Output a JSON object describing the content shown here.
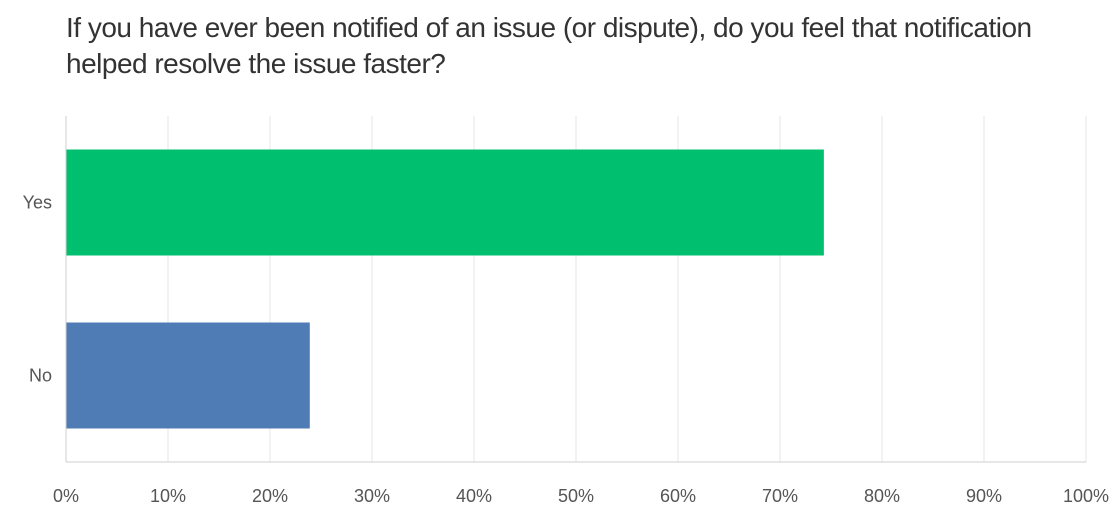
{
  "chart_data": {
    "type": "bar",
    "orientation": "horizontal",
    "title": "If you have ever been notified of an issue (or dispute), do you feel that notification helped resolve the issue faster?",
    "categories": [
      "Yes",
      "No"
    ],
    "values": [
      74.3,
      23.9
    ],
    "colors": [
      "#00bf6f",
      "#507cb6"
    ],
    "xlim": [
      0,
      100
    ],
    "xticks": [
      "0%",
      "10%",
      "20%",
      "30%",
      "40%",
      "50%",
      "60%",
      "70%",
      "80%",
      "90%",
      "100%"
    ],
    "grid": true,
    "legend": "none"
  }
}
